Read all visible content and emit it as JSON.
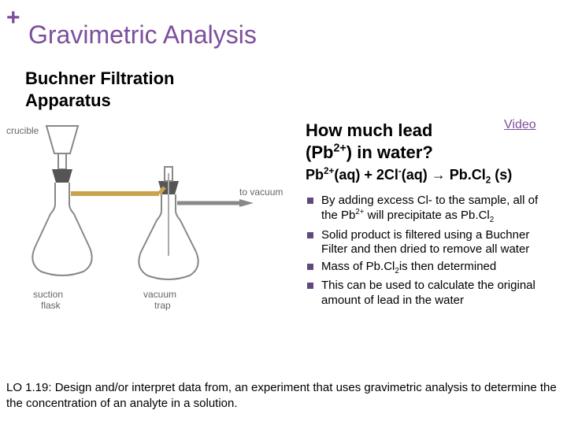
{
  "colors": {
    "accent": "#7d4e9c",
    "plus": "#7d4e9c",
    "videolink": "#7d4e9c",
    "bullet": "#604a7b"
  },
  "plus": "+",
  "title": "Gravimetric Analysis",
  "subtitle_line1": "Buchner Filtration",
  "subtitle_line2": "Apparatus",
  "question_line1": "How much lead",
  "question_pre": " (Pb",
  "question_sup": "2+",
  "question_post": ")  in water?",
  "video_label": "Video",
  "equation": {
    "p1": "Pb",
    "s1": "2+",
    "p2": "(aq) + 2Cl",
    "s2": "-",
    "p3": "(aq) → Pb.Cl",
    "s3": "2",
    "p4": " (s)"
  },
  "bullets": {
    "b1a": "By adding excess Cl- to the sample, all of the Pb",
    "b1sup": "2+",
    "b1b": " will precipitate as Pb.Cl",
    "b1sub": "2",
    "b2": "Solid product is filtered using a Buchner Filter and then dried to remove all water",
    "b3a": "Mass of Pb.Cl",
    "b3sub": "2",
    "b3b": "is then determined",
    "b4": "This can be used to calculate the original amount of lead in the water"
  },
  "footer": "LO 1.19: Design and/or interpret data from, an experiment that uses gravimetric analysis to determine the the concentration of an analyte in a solution.",
  "apparatus": {
    "crucible": "crucible",
    "suction_flask": "suction\nflask",
    "vacuum_trap": "vacuum\ntrap",
    "to_vacuum": "to vacuum"
  }
}
